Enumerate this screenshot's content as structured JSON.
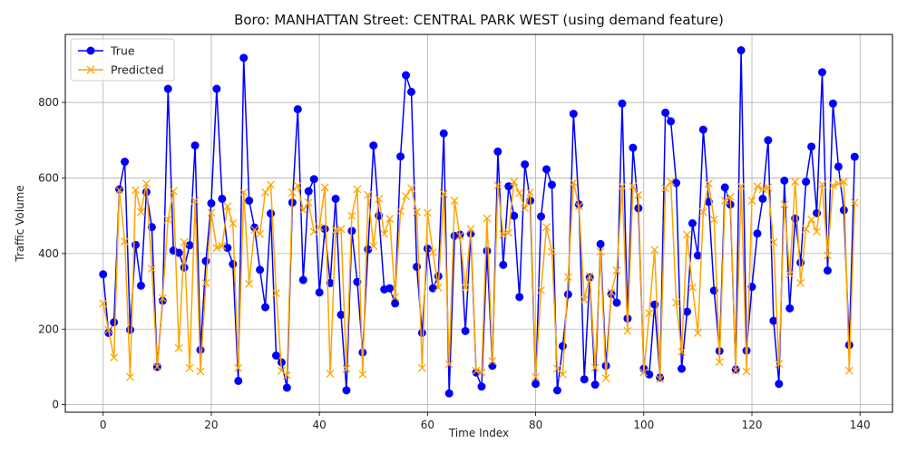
{
  "chart_data": {
    "type": "line",
    "title": "Boro: MANHATTAN Street: CENTRAL PARK WEST (using demand feature)",
    "xlabel": "Time Index",
    "ylabel": "Traffic Volume",
    "xlim": [
      -7,
      146
    ],
    "ylim": [
      -20,
      980
    ],
    "xticks": [
      0,
      20,
      40,
      60,
      80,
      100,
      120,
      140
    ],
    "yticks": [
      0,
      200,
      400,
      600,
      800
    ],
    "grid": true,
    "legend": "upper-left",
    "series": [
      {
        "name": "True",
        "color": "#0000ff",
        "marker": "circle",
        "values": [
          345,
          190,
          218,
          570,
          643,
          198,
          423,
          315,
          563,
          470,
          100,
          275,
          836,
          408,
          402,
          363,
          422,
          686,
          145,
          380,
          533,
          836,
          545,
          415,
          372,
          63,
          918,
          540,
          469,
          357,
          258,
          506,
          130,
          112,
          45,
          535,
          782,
          330,
          565,
          597,
          297,
          465,
          322,
          545,
          238,
          38,
          460,
          325,
          138,
          411,
          686,
          500,
          305,
          308,
          268,
          657,
          872,
          828,
          365,
          190,
          413,
          308,
          340,
          718,
          30,
          447,
          450,
          195,
          453,
          85,
          48,
          407,
          103,
          670,
          370,
          578,
          500,
          285,
          636,
          540,
          55,
          498,
          623,
          582,
          38,
          155,
          292,
          770,
          530,
          67,
          337,
          53,
          425,
          103,
          293,
          270,
          797,
          228,
          680,
          520,
          95,
          80,
          265,
          72,
          773,
          750,
          587,
          95,
          246,
          480,
          395,
          728,
          537,
          302,
          142,
          575,
          530,
          93,
          938,
          143,
          312,
          453,
          545,
          700,
          222,
          55,
          593,
          255,
          493,
          376,
          590,
          683,
          507,
          880,
          355,
          797,
          630,
          515,
          158,
          656
        ]
      },
      {
        "name": "Predicted",
        "color": "#ffa500",
        "marker": "x",
        "values": [
          268,
          198,
          125,
          568,
          432,
          73,
          568,
          510,
          585,
          360,
          100,
          282,
          490,
          565,
          150,
          430,
          97,
          540,
          88,
          322,
          508,
          415,
          420,
          525,
          480,
          97,
          562,
          320,
          463,
          452,
          562,
          582,
          295,
          90,
          78,
          562,
          580,
          515,
          535,
          458,
          470,
          575,
          82,
          462,
          465,
          95,
          500,
          570,
          80,
          555,
          420,
          545,
          452,
          492,
          285,
          512,
          552,
          573,
          510,
          97,
          508,
          403,
          310,
          558,
          107,
          540,
          447,
          310,
          465,
          90,
          85,
          493,
          115,
          580,
          450,
          455,
          590,
          560,
          520,
          562,
          73,
          303,
          470,
          405,
          95,
          80,
          338,
          588,
          525,
          278,
          340,
          98,
          405,
          70,
          297,
          355,
          578,
          195,
          578,
          555,
          85,
          242,
          410,
          68,
          573,
          590,
          270,
          140,
          450,
          310,
          190,
          510,
          585,
          490,
          113,
          540,
          550,
          90,
          578,
          88,
          540,
          578,
          570,
          575,
          430,
          108,
          530,
          345,
          590,
          322,
          465,
          490,
          458,
          583,
          395,
          580,
          585,
          590,
          90,
          535
        ]
      }
    ]
  }
}
